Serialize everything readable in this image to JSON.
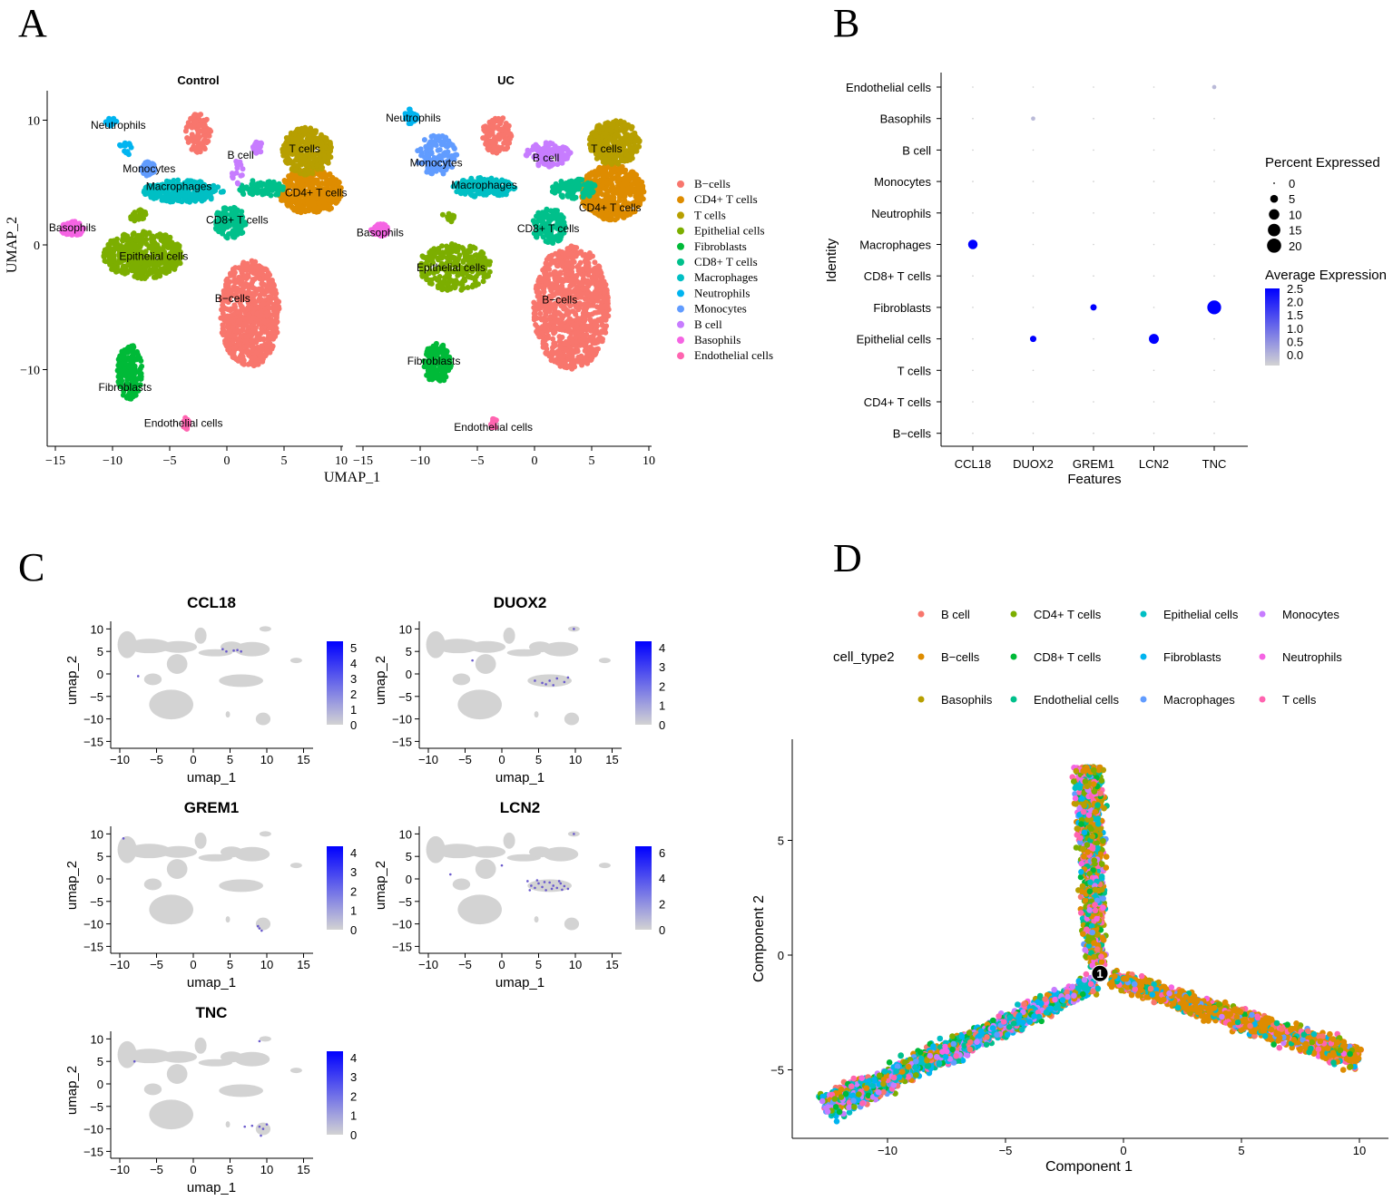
{
  "panel_labels": [
    "A",
    "B",
    "C",
    "D"
  ],
  "chart_data": [
    {
      "type": "scatter",
      "panel": "A",
      "xlabel": "UMAP_1",
      "ylabel": "UMAP_2",
      "xticks": [
        -15,
        -10,
        -5,
        0,
        5,
        10
      ],
      "yticks": [
        10,
        0,
        -10
      ],
      "legend": [
        "B−cells",
        "CD4+ T cells",
        "T cells",
        "Epithelial cells",
        "Fibroblasts",
        "CD8+ T cells",
        "Macrophages",
        "Neutrophils",
        "Monocytes",
        "B cell",
        "Basophils",
        "Endothelial cells"
      ],
      "colors": [
        "#F8766D",
        "#DE8C00",
        "#B79F00",
        "#7CAE00",
        "#00BA38",
        "#00C08B",
        "#00BFC4",
        "#00B4F0",
        "#619CFF",
        "#C77CFF",
        "#F564E3",
        "#FF64B0"
      ],
      "facets": [
        {
          "title": "Control",
          "clusters": [
            {
              "type": 0,
              "label": "B−cells",
              "cx": 2,
              "cy": -5.5,
              "rx": 2.6,
              "ry": 4.3,
              "n": 700,
              "lx": 0.5,
              "ly": -4.3
            },
            {
              "type": 0,
              "label": "",
              "cx": -2.5,
              "cy": 9,
              "rx": 1.1,
              "ry": 1.6,
              "n": 90
            },
            {
              "type": 1,
              "label": "CD4+ T cells",
              "cx": 7.3,
              "cy": 4.3,
              "rx": 2.8,
              "ry": 1.8,
              "n": 400,
              "lx": 7.8,
              "ly": 4.2
            },
            {
              "type": 2,
              "label": "T cells",
              "cx": 7,
              "cy": 7.5,
              "rx": 2.2,
              "ry": 1.9,
              "n": 300,
              "lx": 6.8,
              "ly": 7.7
            },
            {
              "type": 3,
              "label": "Epithelial cells",
              "cx": -7.3,
              "cy": -0.8,
              "rx": 3.5,
              "ry": 1.9,
              "n": 450,
              "lx": -6.4,
              "ly": -0.9
            },
            {
              "type": 3,
              "label": "",
              "cx": -7.8,
              "cy": 2.4,
              "rx": 0.8,
              "ry": 0.5,
              "n": 25
            },
            {
              "type": 4,
              "label": "Fibroblasts",
              "cx": -8.5,
              "cy": -10.2,
              "rx": 1.1,
              "ry": 2.2,
              "n": 160,
              "lx": -8.9,
              "ly": -11.4
            },
            {
              "type": 5,
              "label": "CD8+ T cells",
              "cx": 0.3,
              "cy": 1.8,
              "rx": 1.4,
              "ry": 1.3,
              "n": 130,
              "lx": 0.9,
              "ly": 2.0
            },
            {
              "type": 6,
              "label": "Macrophages",
              "cx": -3.8,
              "cy": 4.3,
              "rx": 3.5,
              "ry": 0.9,
              "n": 230,
              "lx": -4.2,
              "ly": 4.7
            },
            {
              "type": 5,
              "label": "",
              "cx": 3,
              "cy": 4.5,
              "rx": 2,
              "ry": 0.7,
              "n": 80
            },
            {
              "type": 7,
              "label": "Neutrophils",
              "cx": -10.1,
              "cy": 9.9,
              "rx": 0.5,
              "ry": 0.4,
              "n": 12,
              "lx": -9.5,
              "ly": 9.6
            },
            {
              "type": 7,
              "label": "",
              "cx": -8.8,
              "cy": 7.8,
              "rx": 0.6,
              "ry": 0.6,
              "n": 12
            },
            {
              "type": 8,
              "label": "Monocytes",
              "cx": -6.9,
              "cy": 6.1,
              "rx": 0.6,
              "ry": 0.6,
              "n": 40,
              "lx": -6.8,
              "ly": 6.1
            },
            {
              "type": 9,
              "label": "B cell",
              "cx": 2.7,
              "cy": 7.8,
              "rx": 0.5,
              "ry": 0.5,
              "n": 25,
              "lx": 1.2,
              "ly": 7.2
            },
            {
              "type": 9,
              "label": "",
              "cx": 1,
              "cy": 6,
              "rx": 0.6,
              "ry": 1.2,
              "n": 15
            },
            {
              "type": 10,
              "label": "Basophils",
              "cx": -13.5,
              "cy": 1.3,
              "rx": 1,
              "ry": 0.6,
              "n": 70,
              "lx": -13.5,
              "ly": 1.4
            },
            {
              "type": 11,
              "label": "Endothelial cells",
              "cx": -3.6,
              "cy": -14.3,
              "rx": 0.3,
              "ry": 0.5,
              "n": 20,
              "lx": -3.8,
              "ly": -14.3
            }
          ]
        },
        {
          "title": "UC",
          "clusters": [
            {
              "type": 0,
              "label": "B−cells",
              "cx": 3.2,
              "cy": -5,
              "rx": 3.3,
              "ry": 5,
              "n": 900,
              "lx": 2.2,
              "ly": -4.4
            },
            {
              "type": 0,
              "label": "",
              "cx": -3.3,
              "cy": 8.8,
              "rx": 1.3,
              "ry": 1.5,
              "n": 110
            },
            {
              "type": 1,
              "label": "CD4+ T cells",
              "cx": 6.8,
              "cy": 4.2,
              "rx": 2.8,
              "ry": 2.2,
              "n": 450,
              "lx": 6.6,
              "ly": 3.0
            },
            {
              "type": 2,
              "label": "T cells",
              "cx": 7,
              "cy": 8.2,
              "rx": 2.2,
              "ry": 1.8,
              "n": 320,
              "lx": 6.3,
              "ly": 7.7
            },
            {
              "type": 3,
              "label": "Epithelial cells",
              "cx": -7,
              "cy": -1.8,
              "rx": 3.2,
              "ry": 1.9,
              "n": 260,
              "lx": -7.3,
              "ly": -1.8
            },
            {
              "type": 3,
              "label": "",
              "cx": -7.6,
              "cy": 2.2,
              "rx": 0.6,
              "ry": 0.4,
              "n": 15
            },
            {
              "type": 4,
              "label": "Fibroblasts",
              "cx": -8.5,
              "cy": -9.5,
              "rx": 1.2,
              "ry": 1.6,
              "n": 140,
              "lx": -8.8,
              "ly": -9.3
            },
            {
              "type": 5,
              "label": "CD8+ T cells",
              "cx": 1.3,
              "cy": 1.5,
              "rx": 1.5,
              "ry": 1.4,
              "n": 140,
              "lx": 1.2,
              "ly": 1.3
            },
            {
              "type": 6,
              "label": "Macrophages",
              "cx": -4.5,
              "cy": 4.6,
              "rx": 2.8,
              "ry": 0.8,
              "n": 160,
              "lx": -4.4,
              "ly": 4.8
            },
            {
              "type": 5,
              "label": "",
              "cx": 3.5,
              "cy": 4.5,
              "rx": 2,
              "ry": 0.8,
              "n": 100
            },
            {
              "type": 7,
              "label": "Neutrophils",
              "cx": -10.8,
              "cy": 10.3,
              "rx": 0.6,
              "ry": 0.6,
              "n": 30,
              "lx": -10.6,
              "ly": 10.2
            },
            {
              "type": 8,
              "label": "Monocytes",
              "cx": -8.5,
              "cy": 7.2,
              "rx": 1.8,
              "ry": 1.6,
              "n": 120,
              "lx": -8.6,
              "ly": 6.6
            },
            {
              "type": 9,
              "label": "B cell",
              "cx": 1.2,
              "cy": 7.2,
              "rx": 2,
              "ry": 1,
              "n": 110,
              "lx": 1.0,
              "ly": 7.0
            },
            {
              "type": 10,
              "label": "Basophils",
              "cx": -13.5,
              "cy": 1.2,
              "rx": 0.8,
              "ry": 0.5,
              "n": 40,
              "lx": -13.5,
              "ly": 1.0
            },
            {
              "type": 11,
              "label": "Endothelial cells",
              "cx": -3.6,
              "cy": -14.3,
              "rx": 0.3,
              "ry": 0.5,
              "n": 18,
              "lx": -3.6,
              "ly": -14.6
            }
          ]
        }
      ]
    },
    {
      "type": "dotplot",
      "panel": "B",
      "xlabel": "Features",
      "ylabel": "Identity",
      "features": [
        "CCL18",
        "DUOX2",
        "GREM1",
        "LCN2",
        "TNC"
      ],
      "identities": [
        "Endothelial cells",
        "Basophils",
        "B cell",
        "Monocytes",
        "Neutrophils",
        "Macrophages",
        "CD8+ T cells",
        "Fibroblasts",
        "Epithelial cells",
        "T cells",
        "CD4+ T cells",
        "B−cells"
      ],
      "dots": [
        {
          "identity": "Macrophages",
          "feature": "CCL18",
          "pct": 8,
          "avg": 2.5
        },
        {
          "identity": "Fibroblasts",
          "feature": "GREM1",
          "pct": 3,
          "avg": 2.5
        },
        {
          "identity": "Fibroblasts",
          "feature": "TNC",
          "pct": 19,
          "avg": 2.5
        },
        {
          "identity": "Epithelial cells",
          "feature": "DUOX2",
          "pct": 3,
          "avg": 2.5
        },
        {
          "identity": "Epithelial cells",
          "feature": "LCN2",
          "pct": 9,
          "avg": 2.5
        },
        {
          "identity": "Basophils",
          "feature": "DUOX2",
          "pct": 1,
          "avg": 0.3
        },
        {
          "identity": "Endothelial cells",
          "feature": "TNC",
          "pct": 1,
          "avg": 0.3
        }
      ],
      "size_legend": {
        "title": "Percent Expressed",
        "values": [
          0,
          5,
          10,
          15,
          20
        ]
      },
      "color_legend": {
        "title": "Average Expression",
        "ticks": [
          "2.5",
          "2.0",
          "1.5",
          "1.0",
          "0.5",
          "0.0"
        ],
        "low": "#D3D3D3",
        "high": "#0000FF"
      }
    },
    {
      "type": "scatter",
      "panel": "C",
      "xlabel": "umap_1",
      "ylabel": "umap_2",
      "xticks": [
        -10,
        -5,
        0,
        5,
        10,
        15
      ],
      "yticks": [
        10,
        5,
        0,
        -5,
        -10,
        -15
      ],
      "background": [
        [
          -9,
          6.5,
          1.3,
          3
        ],
        [
          -6,
          6.2,
          3,
          1.6
        ],
        [
          -2,
          6,
          2.5,
          1.3
        ],
        [
          1,
          8.5,
          0.8,
          1.8
        ],
        [
          3,
          4.7,
          2.3,
          0.8
        ],
        [
          5.2,
          6,
          1.5,
          1.2
        ],
        [
          8,
          5.5,
          2.4,
          1.6
        ],
        [
          9.8,
          10,
          0.8,
          0.6
        ],
        [
          -2.2,
          2.2,
          1.4,
          2.2
        ],
        [
          -5.5,
          -1.2,
          1.2,
          1.3
        ],
        [
          -3,
          -6.8,
          3,
          3.3
        ],
        [
          6.5,
          -1.5,
          3,
          1.4
        ],
        [
          9.5,
          -10,
          1,
          1.4
        ],
        [
          14,
          3,
          0.8,
          0.6
        ],
        [
          4.7,
          -9,
          0.3,
          0.7
        ]
      ],
      "features": [
        {
          "title": "CCL18",
          "max": 5,
          "ticks": [
            "5",
            "4",
            "3",
            "2",
            "1",
            "0"
          ],
          "expr": [
            [
              4.5,
              5
            ],
            [
              5.5,
              5.2
            ],
            [
              6.5,
              5
            ],
            [
              4,
              5.5
            ],
            [
              6,
              5.3
            ],
            [
              -7.5,
              -0.5
            ]
          ]
        },
        {
          "title": "DUOX2",
          "max": 4,
          "ticks": [
            "4",
            "3",
            "2",
            "1",
            "0"
          ],
          "expr": [
            [
              4.5,
              -1.5
            ],
            [
              5.5,
              -2
            ],
            [
              6.5,
              -1.5
            ],
            [
              7.5,
              -1
            ],
            [
              8.5,
              -1.8
            ],
            [
              9,
              -0.8
            ],
            [
              6,
              -2.3
            ],
            [
              7,
              -2.5
            ],
            [
              9.8,
              10
            ],
            [
              -4,
              3
            ]
          ]
        },
        {
          "title": "GREM1",
          "max": 4,
          "ticks": [
            "4",
            "3",
            "2",
            "1",
            "0"
          ],
          "expr": [
            [
              9,
              -11
            ],
            [
              9.3,
              -11.5
            ],
            [
              8.8,
              -10.5
            ],
            [
              -9.5,
              9
            ]
          ]
        },
        {
          "title": "LCN2",
          "max": 6,
          "ticks": [
            "6",
            "4",
            "2",
            "0"
          ],
          "expr": [
            [
              3.5,
              -0.5
            ],
            [
              4,
              -1.5
            ],
            [
              4.5,
              -2
            ],
            [
              5,
              -1
            ],
            [
              5.5,
              -1.8
            ],
            [
              6,
              -2.5
            ],
            [
              6.5,
              -0.8
            ],
            [
              7,
              -1.5
            ],
            [
              7.5,
              -2
            ],
            [
              8,
              -1
            ],
            [
              8.5,
              -1.6
            ],
            [
              9,
              -2.2
            ],
            [
              4.8,
              -0.3
            ],
            [
              5.8,
              -0.7
            ],
            [
              6.8,
              -2.2
            ],
            [
              7.8,
              -0.5
            ],
            [
              8.2,
              -2.4
            ],
            [
              3.8,
              -2.5
            ],
            [
              9.8,
              10
            ],
            [
              -7,
              1
            ],
            [
              0,
              3
            ]
          ]
        },
        {
          "title": "TNC",
          "max": 4,
          "ticks": [
            "4",
            "3",
            "2",
            "1",
            "0"
          ],
          "expr": [
            [
              7,
              -9.5
            ],
            [
              8,
              -9.3
            ],
            [
              9,
              -9.5
            ],
            [
              9.5,
              -10
            ],
            [
              10,
              -9
            ],
            [
              9.2,
              -11.5
            ],
            [
              -8,
              5
            ],
            [
              9,
              9.5
            ]
          ]
        }
      ],
      "color_low": "#D3D3D3",
      "color_high": "#0000FF"
    },
    {
      "type": "scatter",
      "panel": "D",
      "xlabel": "Component 1",
      "ylabel": "Component 2",
      "xticks": [
        -10,
        -5,
        0,
        5,
        10
      ],
      "yticks": [
        5,
        0,
        -5
      ],
      "legend_title": "cell_type2",
      "legend": [
        "B cell",
        "B−cells",
        "Basophils",
        "CD4+ T cells",
        "CD8+ T cells",
        "Endothelial cells",
        "Epithelial cells",
        "Fibroblasts",
        "Macrophages",
        "Monocytes",
        "Neutrophils",
        "T cells"
      ],
      "colors": [
        "#F8766D",
        "#DE8C00",
        "#B79F00",
        "#7CAE00",
        "#00BA38",
        "#00C08B",
        "#00BFC4",
        "#00B4F0",
        "#619CFF",
        "#C77CFF",
        "#F564E3",
        "#FF64B0"
      ],
      "branch_node": {
        "label": "1",
        "x": -1,
        "y": -0.8
      },
      "branches": [
        {
          "from": [
            -1.2,
            -0.5
          ],
          "to": [
            -1.5,
            8.2
          ],
          "width": 0.55,
          "n": 1400,
          "weights": [
            1,
            4,
            2,
            3,
            1,
            1,
            2,
            1,
            1,
            1,
            2,
            2
          ]
        },
        {
          "from": [
            -1.2,
            -1.2
          ],
          "to": [
            -12.7,
            -6.7
          ],
          "width": 0.55,
          "n": 1500,
          "weights": [
            1,
            1,
            0.5,
            1,
            1,
            1.5,
            2,
            3,
            1,
            2,
            0.5,
            1.5
          ]
        },
        {
          "from": [
            -0.5,
            -1.0
          ],
          "to": [
            10,
            -4.5
          ],
          "width": 0.5,
          "n": 1500,
          "weights": [
            1,
            8,
            0.5,
            0.5,
            0.3,
            0.5,
            1,
            0.3,
            0.3,
            0.2,
            0.3,
            1.5
          ]
        }
      ]
    }
  ]
}
